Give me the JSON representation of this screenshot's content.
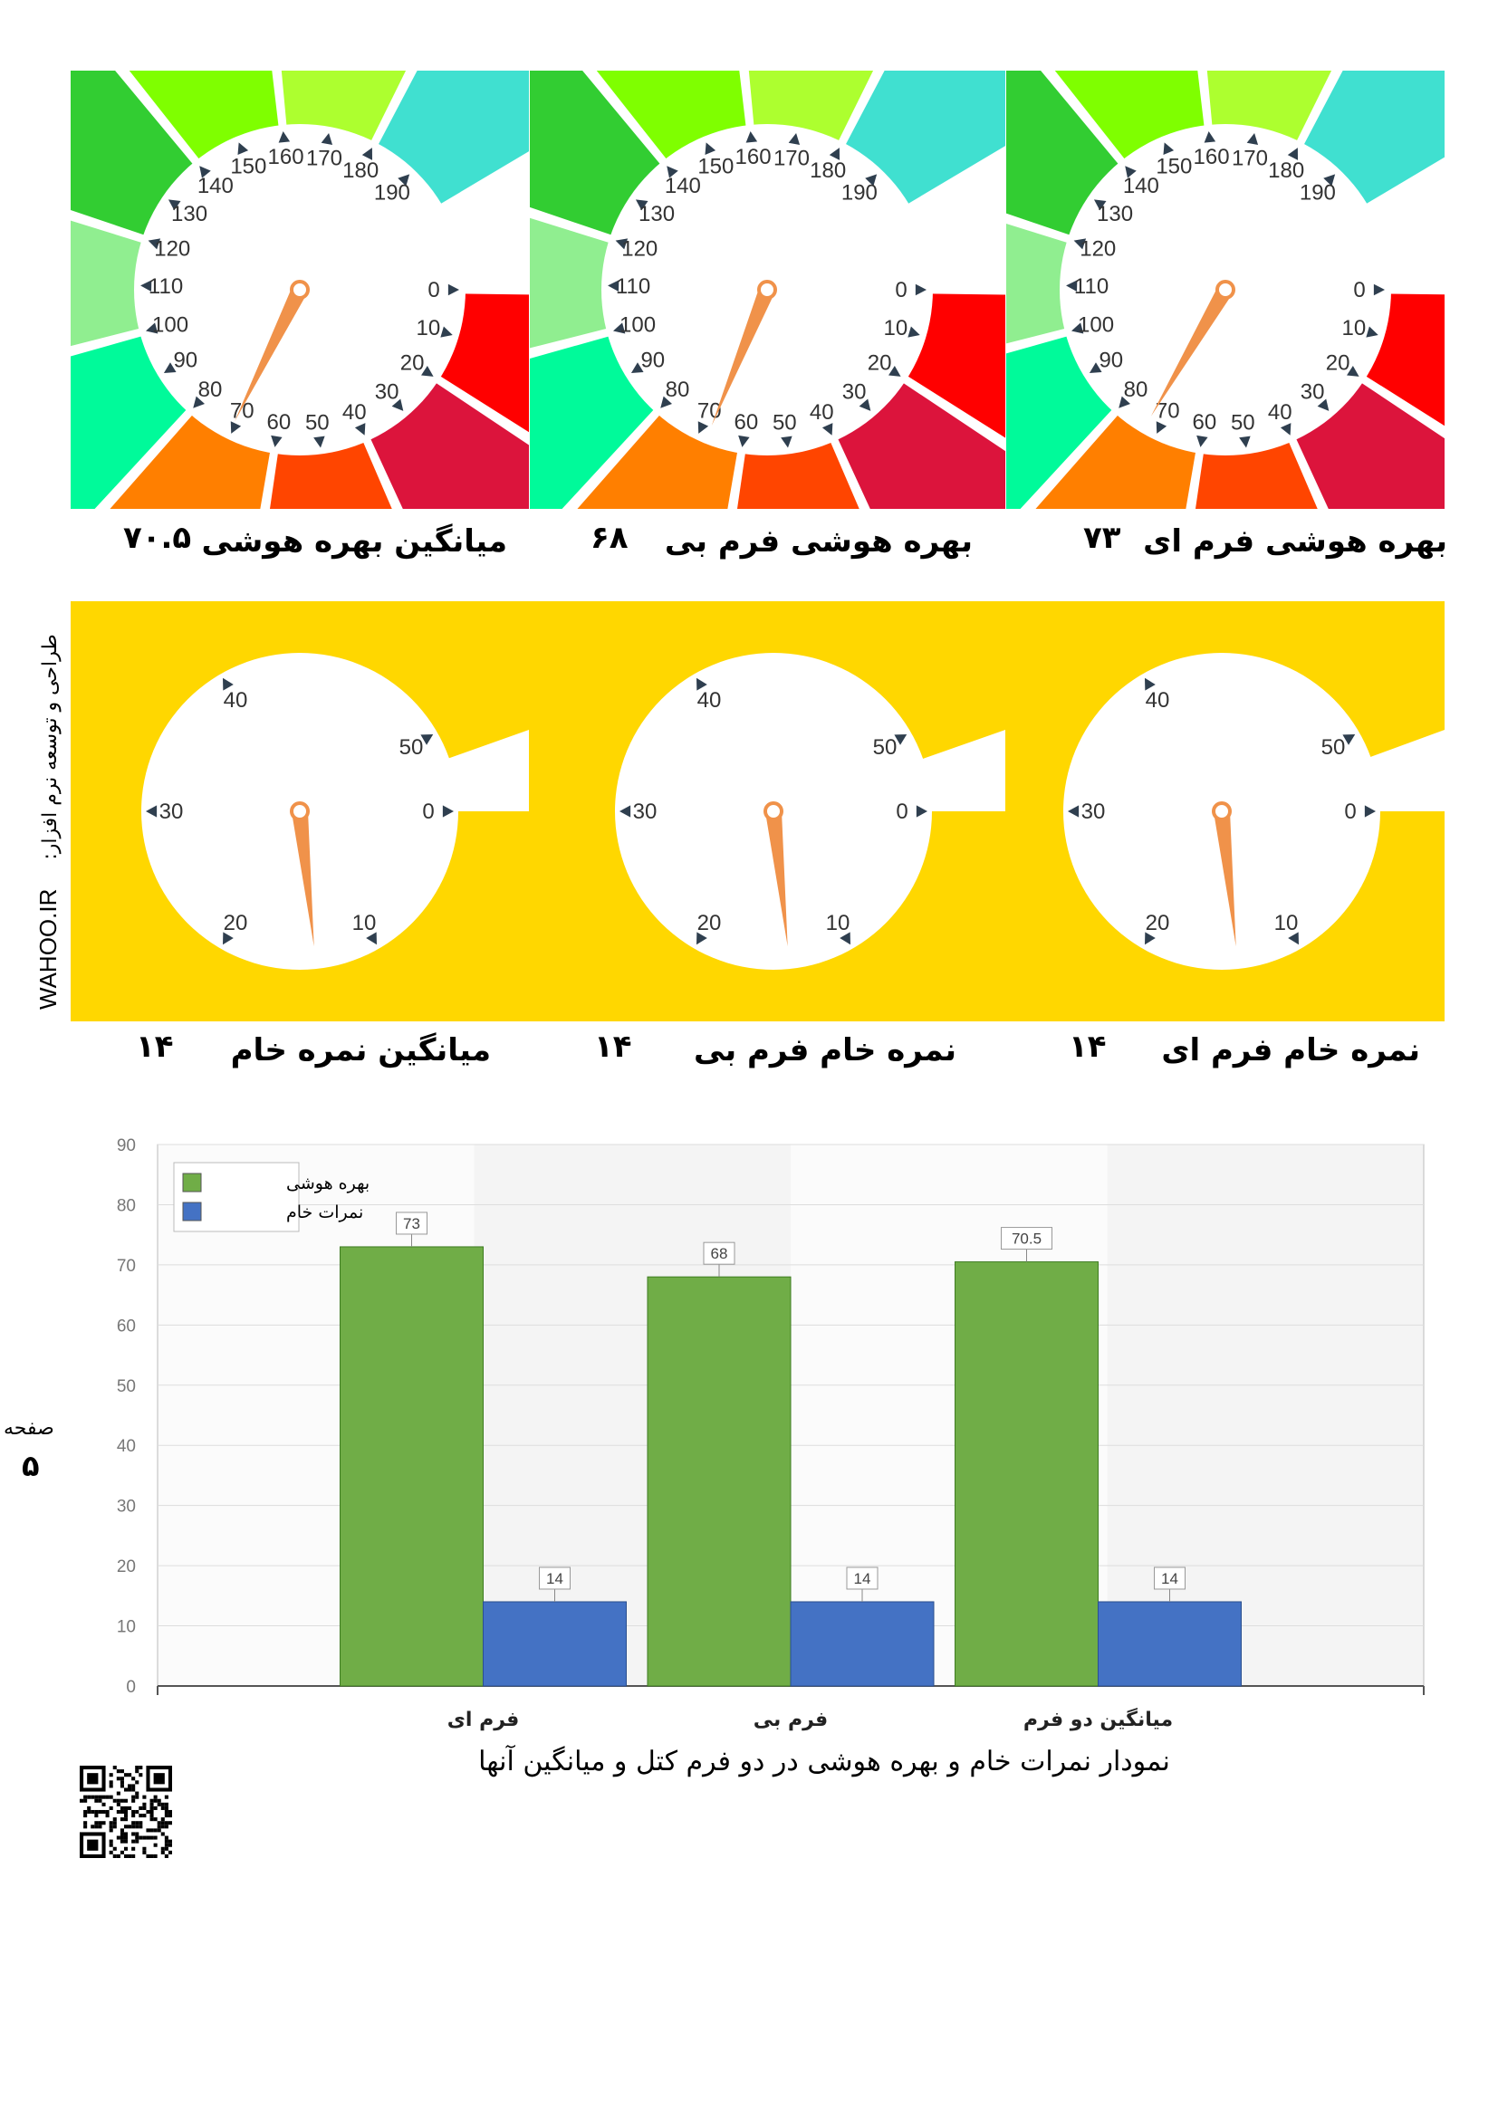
{
  "iq_gauges": [
    {
      "label": "بهره هوشی فرم ای",
      "value_text": "۷۳",
      "value": 73
    },
    {
      "label": "بهره هوشی فرم بی",
      "value_text": "۶۸",
      "value": 68
    },
    {
      "label": "میانگین بهره هوشی",
      "value_text": "۷۰.۵",
      "value": 70.5
    }
  ],
  "iq_scale": {
    "min": 0,
    "max": 200,
    "tick_step": 10
  },
  "raw_gauges": [
    {
      "label": "نمره خام فرم ای",
      "value_text": "۱۴",
      "value": 14
    },
    {
      "label": "نمره خام فرم بی",
      "value_text": "۱۴",
      "value": 14
    },
    {
      "label": "میانگین نمره خام",
      "value_text": "۱۴",
      "value": 14
    }
  ],
  "raw_scale": {
    "min": 0,
    "max": 50,
    "tick_step": 10
  },
  "colors": {
    "raw_background": "#FFD700",
    "needle": "#F0924A",
    "bar_iq": "#70AD47",
    "bar_raw": "#4472C4",
    "iq_bands": [
      "#FF0000",
      "#DC143C",
      "#FF4500",
      "#FF7F00",
      "#00FA9A",
      "#90EE90",
      "#32CD32",
      "#7FFF00",
      "#ADFF2F",
      "#40E0D0"
    ]
  },
  "side": {
    "credit": "طراحی و توسعه نرم افزار:",
    "site": "WAHOO.IR",
    "page_word": "صفحه",
    "page_number": "۵"
  },
  "chart_data": {
    "type": "bar",
    "categories": [
      "فرم ای",
      "فرم بی",
      "میانگین دو فرم"
    ],
    "series": [
      {
        "name": "بهره هوشی",
        "values": [
          73,
          68,
          70.5
        ]
      },
      {
        "name": "نمرات خام",
        "values": [
          14,
          14,
          14
        ]
      }
    ],
    "ylim": [
      0,
      90
    ],
    "yticks": [
      0,
      10,
      20,
      30,
      40,
      50,
      60,
      70,
      80,
      90
    ],
    "data_labels": [
      "73",
      "68",
      "70.5",
      "14",
      "14",
      "14"
    ],
    "grid": true,
    "legend_position": "top-left",
    "caption": "نمودار نمرات خام و بهره هوشی در دو فرم کتل و میانگین آنها"
  }
}
